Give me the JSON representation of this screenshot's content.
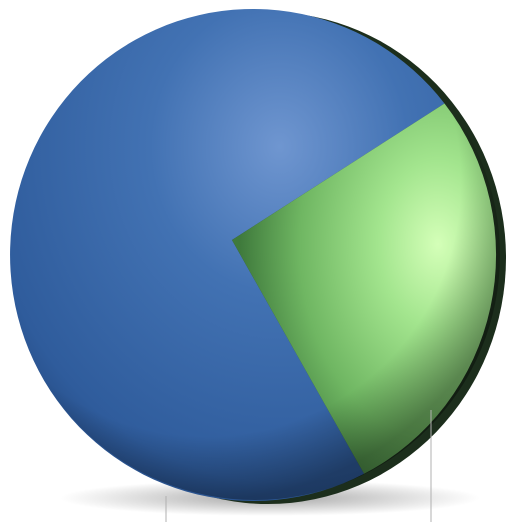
{
  "chart_data": {
    "type": "pie",
    "style": "3d-shaded",
    "legend": "none",
    "slices": [
      {
        "name": "",
        "value": 72,
        "color": "#3b67a8"
      },
      {
        "name": "",
        "value": 28,
        "color": "#8fd57f"
      }
    ],
    "start_angle_deg": 180,
    "direction": "clockwise"
  }
}
